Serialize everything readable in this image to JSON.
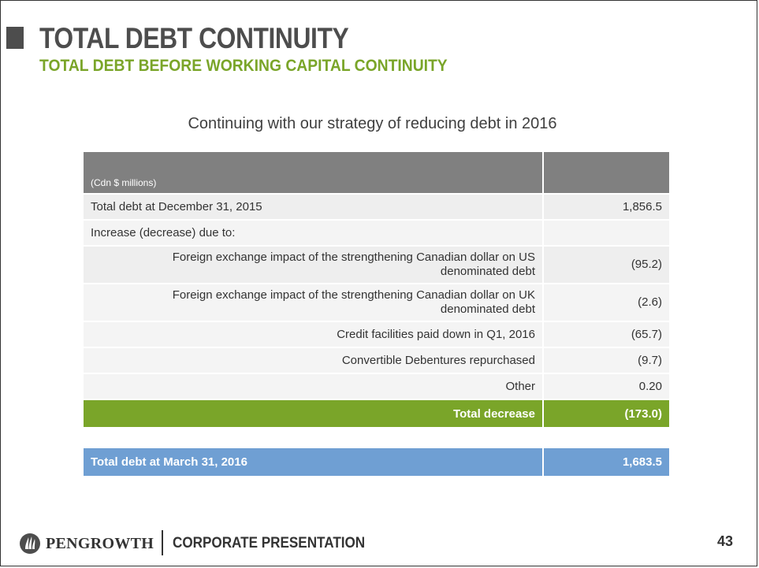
{
  "header": {
    "title": "TOTAL DEBT CONTINUITY",
    "subtitle": "TOTAL DEBT BEFORE WORKING CAPITAL CONTINUITY"
  },
  "tagline": "Continuing with our strategy of reducing debt in 2016",
  "table": {
    "unit_label": "(Cdn $ millions)",
    "rows": [
      {
        "label": "Total debt at December 31, 2015",
        "value": "1,856.5"
      },
      {
        "label": "Increase (decrease) due to:",
        "value": ""
      },
      {
        "label": "Foreign exchange impact of the strengthening Canadian dollar on US denominated debt",
        "value": "(95.2)"
      },
      {
        "label": "Foreign exchange impact of the strengthening Canadian dollar on UK denominated debt",
        "value": "(2.6)"
      },
      {
        "label": "Credit facilities paid down in Q1, 2016",
        "value": "(65.7)"
      },
      {
        "label": "Convertible Debentures repurchased",
        "value": "(9.7)"
      },
      {
        "label": "Other",
        "value": "0.20"
      }
    ],
    "total": {
      "label": "Total decrease",
      "value": "(173.0)"
    },
    "final": {
      "label": "Total debt at March 31, 2016",
      "value": "1,683.5"
    }
  },
  "footer": {
    "logo_text": "PENGROWTH",
    "label": "CORPORATE PRESENTATION",
    "page_number": "43"
  },
  "colors": {
    "accent_green": "#7aa529",
    "accent_blue": "#6f9fd3",
    "header_gray": "#808080"
  }
}
